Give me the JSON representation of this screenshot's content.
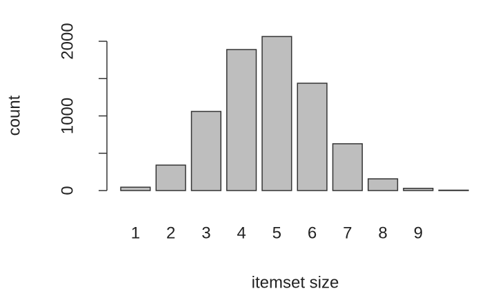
{
  "chart_data": {
    "type": "bar",
    "xlabel": "itemset size",
    "ylabel": "count",
    "categories": [
      "1",
      "2",
      "3",
      "4",
      "5",
      "6",
      "7",
      "8",
      "9",
      null
    ],
    "values": [
      45,
      341,
      1060,
      1889,
      2064,
      1438,
      627,
      157,
      30,
      5
    ],
    "color": "#bebebe",
    "ylim": [
      0,
      2100
    ],
    "yticks": [
      0,
      1000,
      2000
    ],
    "minor_yticks": [
      500,
      1500
    ]
  }
}
